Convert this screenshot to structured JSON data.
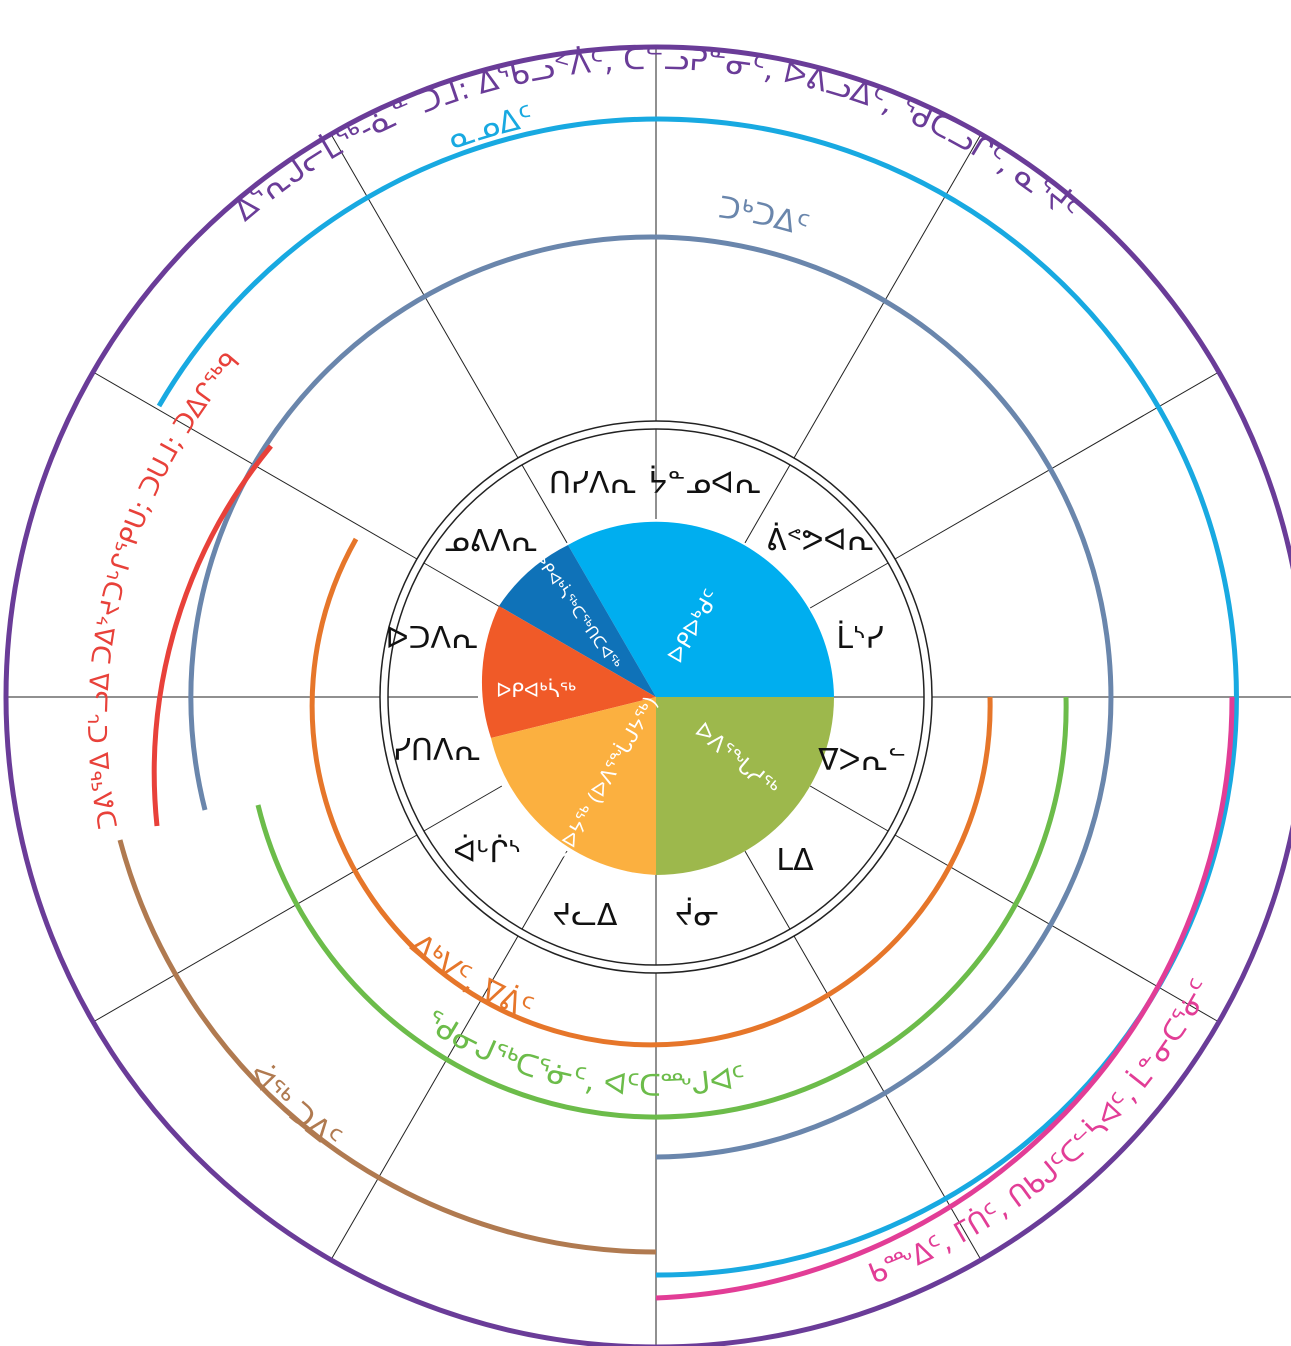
{
  "colors": {
    "outer_ring": "#6a3c98",
    "blue_ring": "#18a9e1",
    "slate_ring": "#6a86ac",
    "red": "#e8413a",
    "orange": "#e6762a",
    "green": "#6cbc4a",
    "brown": "#b07a50",
    "pink": "#e23d96",
    "season_summer": "#00aeef",
    "season_early_fall": "#0f72b8",
    "season_fall": "#f05a28",
    "season_winter": "#fbb040",
    "season_spring": "#9db84c",
    "grid": "#222222",
    "season_text": "#ffffff",
    "month_text": "#111111"
  },
  "rings": {
    "outer": "ᐃᕐᕆᒍᓕᒫᖅ-ᓈᓐ ᑐᒧ: ᐃᕐᑲᓗᑉᐲᑦ, ᑕᓪᓗᕈᓐᓂᑦ, ᐅᕕᓗᐃᑦ, ᖁᑕᓗᒋᑦ, ᓇᕐᔫᑦ",
    "blue": "ᓇᓄᐃᑦ",
    "slate": "ᑐᒃᑐᐃᑦ",
    "red": "ᑐᕕᖅᐃ ᑕᒡᓗᐃ ᑐᐃᔾᔪᑐᒡᒋᕿᑌ; ᑐᑌᒧ; ᑐᐃᒋᖅᑫ",
    "orange": "ᐃᒃᐯᑦ, ᐁᕖᑦ",
    "green": "ᖁᓂᒍᖅᑕᕐᓃᑦ, ᐊᑦᑕᖖᒍᐊᑦ",
    "brown": "ᐋᖅ ᑐᐃᑦ",
    "pink": "ᑲᖖᐃᑦ, ᒥᑏᑦ, ᑎᑲᒍᑦᑕᓪᓵᐊᑦ, ᒫᓐᓂᑕᕐᓃᑦ"
  },
  "months": [
    "ᔮᓐᓄᐊᕆ",
    "ᕖᕝᕗᐊᕆ",
    "ᒫᔅᓯ",
    "ᐁᐳᕆᓪ",
    "ᒪᐃ",
    "ᔫᓂ",
    "ᔪᓚᐃ",
    "ᐋᒡᒌᔅ",
    "ᓯᑎᐱᕆ",
    "ᐅᑐᐱᕆ",
    "ᓄᕕᐱᕆ",
    "ᑎᓯᐱᕆ"
  ],
  "seasons": [
    {
      "label": "ᐅᑭᐅᒃᑯᑦ"
    },
    {
      "label": "ᐅᐱᕐᖓᓱᖅ"
    },
    {
      "label": "ᐊᐅᔭᖅ (ᐅᐱᕐᖔᒍᔭᖅ)"
    },
    {
      "label": "ᐅᑭᐊᒃᓵᖅ"
    },
    {
      "label": "ᐅᑭᐊᒃᓵᖅᑕᖅᑎᑕᐊᖅ"
    }
  ]
}
